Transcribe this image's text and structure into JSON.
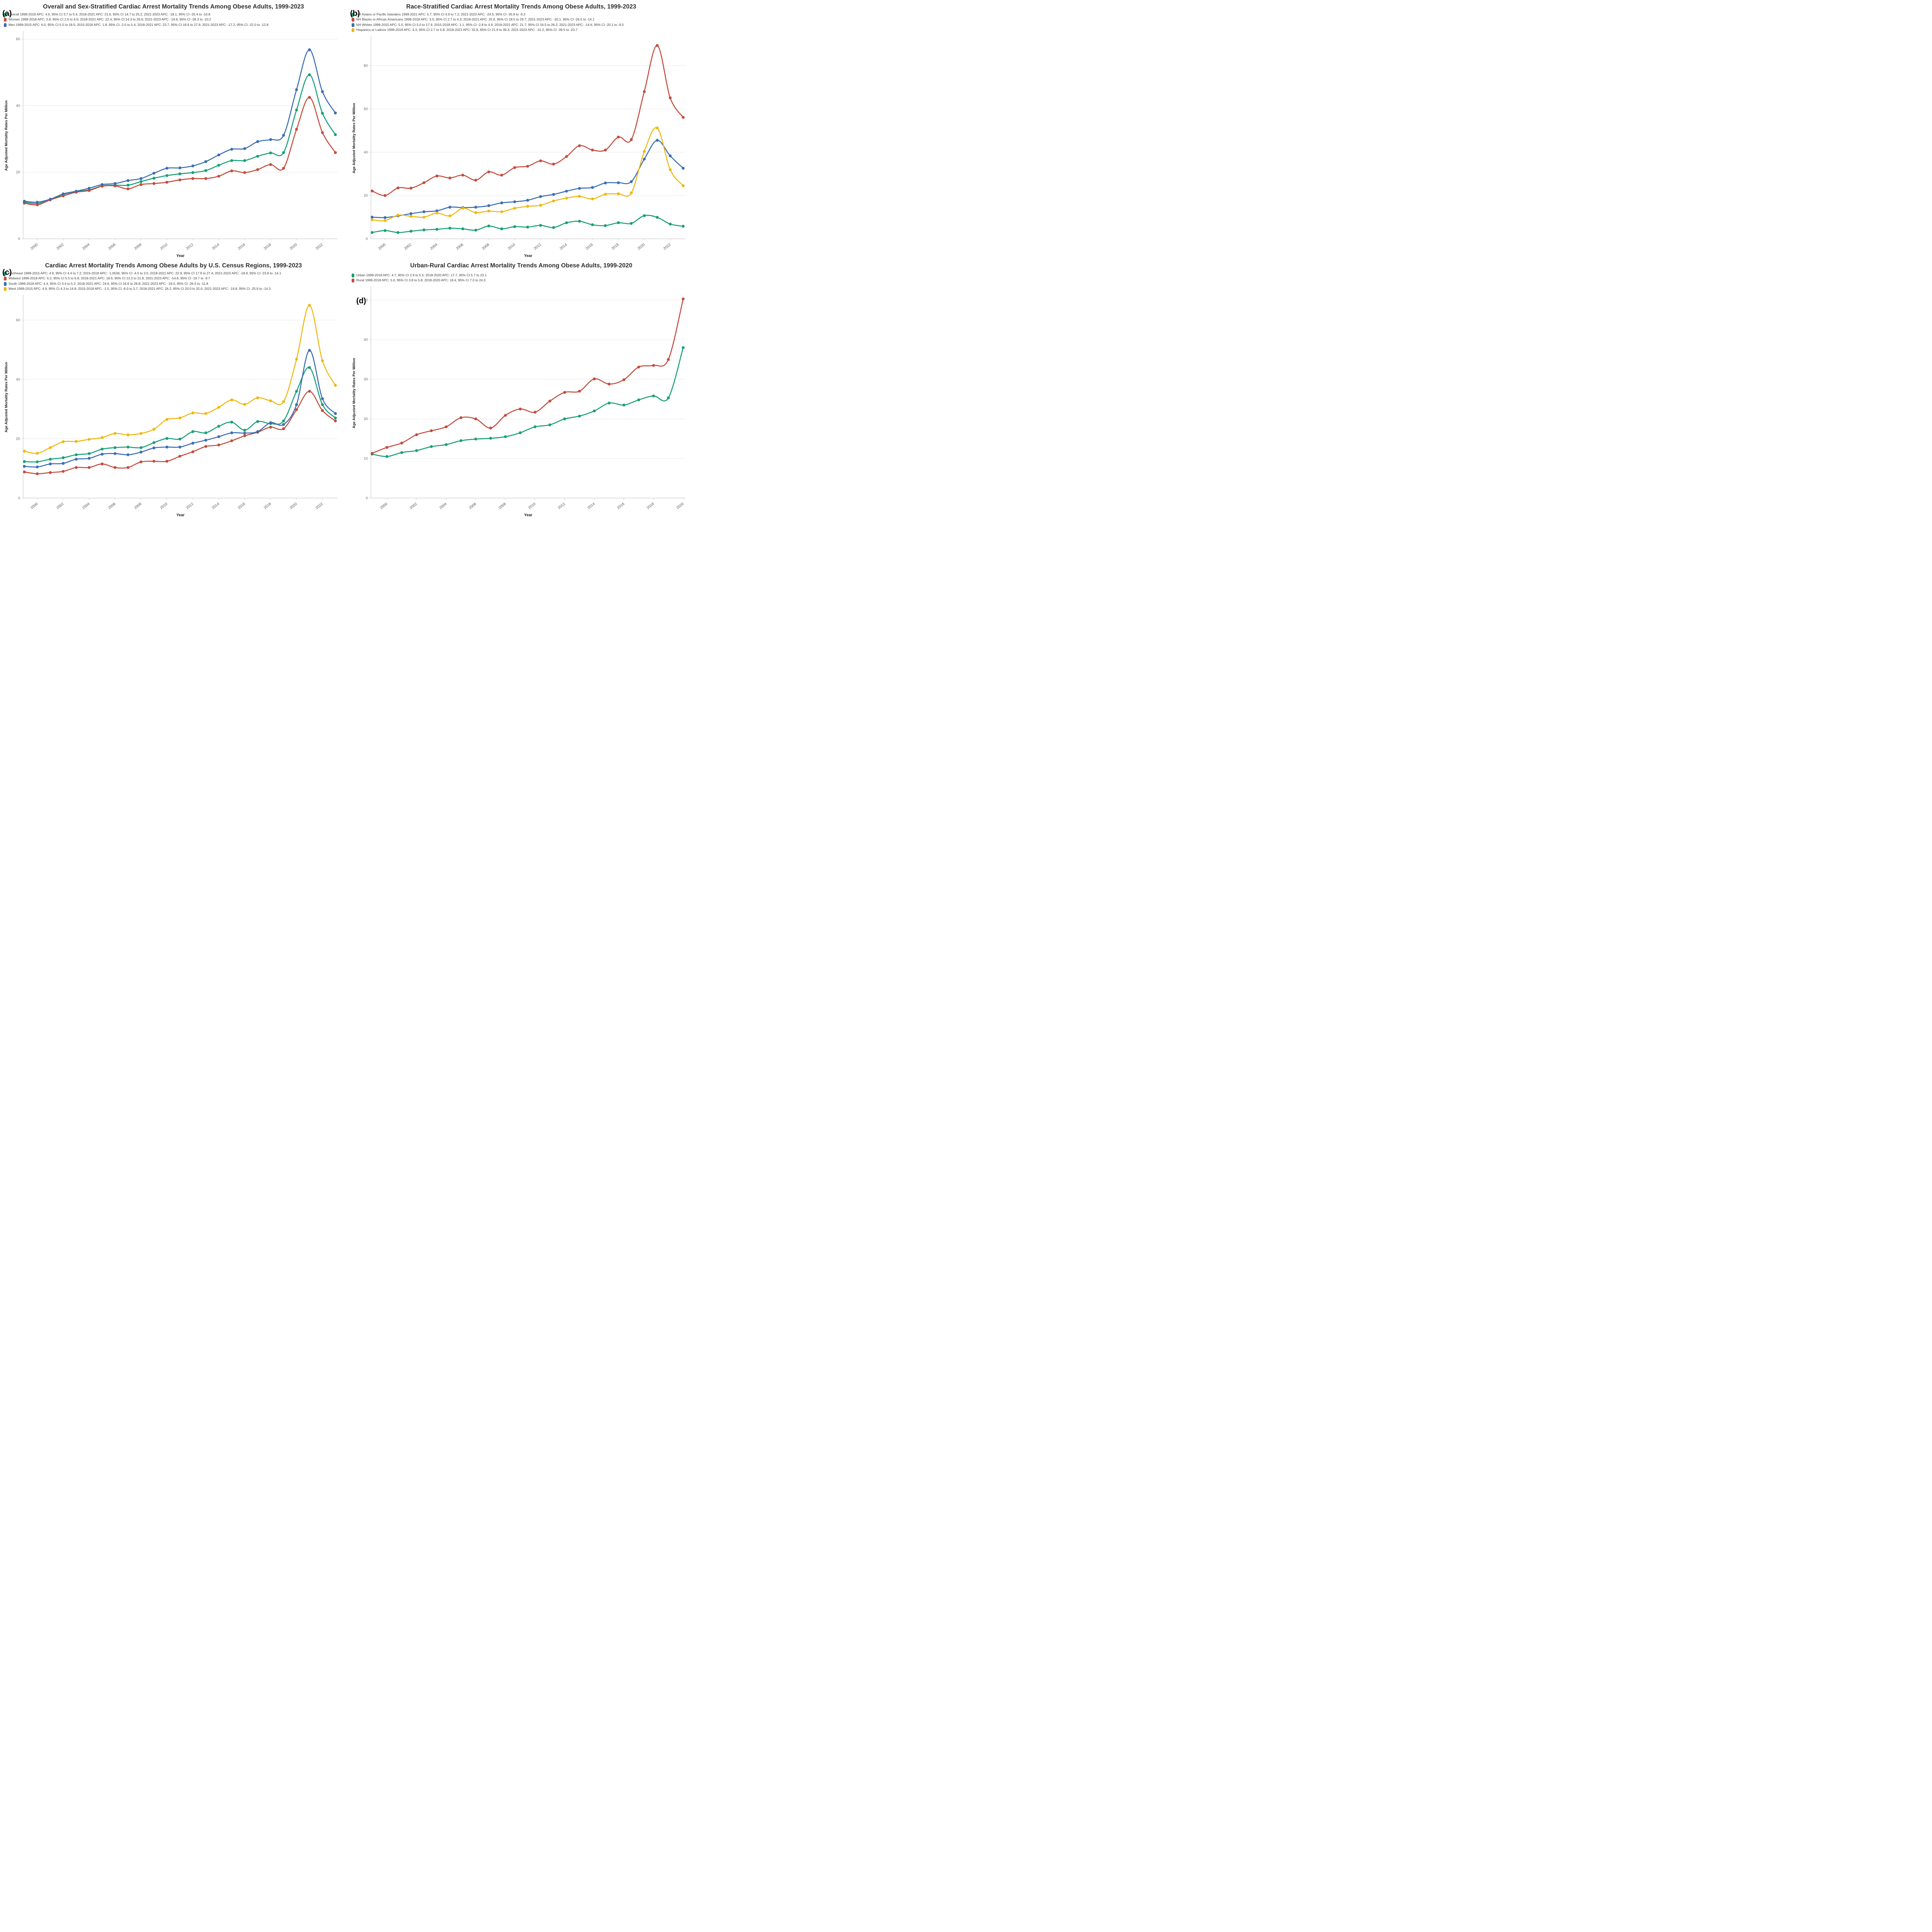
{
  "panels": [
    {
      "letter": "(a)",
      "title": "Overall and Sex-Stratified Cardiac Arrest Mortality Trends Among Obese Adults, 1999-2023"
    },
    {
      "letter": "(b)",
      "title": "Race-Stratified Cardiac Arrest Mortality Trends Among Obese Adults, 1999-2023"
    },
    {
      "letter": "(c)",
      "title": "Cardiac Arrest Mortality Trends Among Obese Adults by U.S. Census Regions, 1999-2023"
    },
    {
      "letter": "(d)",
      "title": "Urban-Rural Cardiac Arrest Mortality Trends Among Obese Adults, 1999-2020"
    }
  ],
  "chart_data": [
    {
      "type": "line",
      "title": "Overall and Sex-Stratified Cardiac Arrest Mortality Trends Among Obese Adults, 1999-2023",
      "xlabel": "Year",
      "ylabel": "Age Adjusted Mortality Rates Per Million",
      "x": [
        1999,
        2000,
        2001,
        2002,
        2003,
        2004,
        2005,
        2006,
        2007,
        2008,
        2009,
        2010,
        2011,
        2012,
        2013,
        2014,
        2015,
        2016,
        2017,
        2018,
        2019,
        2020,
        2021,
        2022,
        2023
      ],
      "xticks": [
        2000,
        2002,
        2004,
        2006,
        2008,
        2010,
        2012,
        2014,
        2016,
        2018,
        2020,
        2022
      ],
      "yticks": [
        0,
        20,
        40,
        60
      ],
      "ylim": [
        0,
        62
      ],
      "grid": "horizontal",
      "legend_position": "top-left",
      "series": [
        {
          "name": "Overall",
          "color": "#16a075",
          "label": "Overall 1999-2018 APC: 4.6, 95% CI 3.7 to 5.4; 2018-2021 APC: 21.6, 95% CI 14.7 to 25.2; 2021-2023 APC: -18.1, 95% CI -25.4 to -10.8",
          "values": [
            11.0,
            10.6,
            11.8,
            13.3,
            14.2,
            14.7,
            15.9,
            16.1,
            16.1,
            17.2,
            18.2,
            19.0,
            19.5,
            19.9,
            20.5,
            22.1,
            23.5,
            23.5,
            24.8,
            25.8,
            25.9,
            38.7,
            49.3,
            37.7,
            31.3
          ]
        },
        {
          "name": "Women",
          "color": "#c54b3c",
          "label": "Women 1999-2018 APC: 3.8, 95% CI 2.6 to 4.6; 2018-2021 APC: 22.4, 95% CI 14.3 to 26.6; 2021-2023 APC: -19.8, 95% CI -28.3 to -10.2",
          "values": [
            10.7,
            10.2,
            11.7,
            12.9,
            14.0,
            14.5,
            15.8,
            15.9,
            15.0,
            16.3,
            16.6,
            17.0,
            17.7,
            18.1,
            18.1,
            18.8,
            20.4,
            19.9,
            20.8,
            22.3,
            21.2,
            32.9,
            42.5,
            31.9,
            25.9
          ]
        },
        {
          "name": "Men",
          "color": "#3b6db5",
          "label": "Men 1999-2015 APC: 6.0, 95% CI 5.5 to 18.5; 2015-2018 APC: 1.8, 95% CI -2.0 to 5.4; 2018-2021 APC: 23.7, 95% CI 18.9 to 27.9; 2021-2023 APC: -17.2, 95% CI -22.0 to -12.8",
          "values": [
            11.3,
            11.0,
            11.9,
            13.5,
            14.3,
            15.2,
            16.3,
            16.6,
            17.5,
            18.1,
            19.7,
            21.2,
            21.3,
            21.9,
            23.2,
            25.2,
            26.9,
            27.1,
            29.2,
            29.8,
            31.1,
            44.8,
            56.8,
            44.2,
            37.8
          ]
        }
      ]
    },
    {
      "type": "line",
      "title": "Race-Stratified Cardiac Arrest Mortality Trends Among Obese Adults, 1999-2023",
      "xlabel": "Year",
      "ylabel": "Age Adjusted Mortality Rates Per Million",
      "x": [
        1999,
        2000,
        2001,
        2002,
        2003,
        2004,
        2005,
        2006,
        2007,
        2008,
        2009,
        2010,
        2011,
        2012,
        2013,
        2014,
        2015,
        2016,
        2017,
        2018,
        2019,
        2020,
        2021,
        2022,
        2023
      ],
      "xticks": [
        2000,
        2002,
        2004,
        2006,
        2008,
        2010,
        2012,
        2014,
        2016,
        2018,
        2020,
        2022
      ],
      "yticks": [
        0,
        20,
        40,
        60,
        80
      ],
      "ylim": [
        0,
        93
      ],
      "grid": "horizontal",
      "legend_position": "top-left",
      "series": [
        {
          "name": "NH Asians or Pacific Islanders",
          "color": "#16a075",
          "label": "NH Asians or Pacific Islanders 1999-2021 APC: 5.7, 95% CI 4.9 to 7.2; 2021-2023 APC: -24.5, 95% CI -35.8 to -9.3",
          "values": [
            2.9,
            3.8,
            2.9,
            3.5,
            4.1,
            4.4,
            4.9,
            4.6,
            4.0,
            5.9,
            4.6,
            5.6,
            5.4,
            6.2,
            5.2,
            7.4,
            8.1,
            6.5,
            6.1,
            7.4,
            7.1,
            10.7,
            9.9,
            6.8,
            5.8
          ]
        },
        {
          "name": "NH Blacks or African Americans",
          "color": "#c54b3c",
          "label": "NH Blacks or African Americans 1999-2018 APC: 3.5, 95% CI 2.7 to 4.3; 2018-2021 APC: 25.6, 95% CI 18.5 to 29.7; 2021-2023 APC: -20.1, 95% CI -26.5 to -14.1",
          "values": [
            22.1,
            20.0,
            23.5,
            23.4,
            25.9,
            29.0,
            28.1,
            29.4,
            27.1,
            30.9,
            29.4,
            32.9,
            33.5,
            36.0,
            34.5,
            38.0,
            43.0,
            41.0,
            41.0,
            47.0,
            45.8,
            68.0,
            89.3,
            65.1,
            56.1
          ]
        },
        {
          "name": "NH Whites",
          "color": "#3b6db5",
          "label": "NH Whites 1999-2015 APC: 5.5, 95% CI 5.0 to 17.4; 2015-2018 APC: 1.1, 95% CI -2.8 to 4.9; 2018-2021 APC: 21.7, 95% CI 16.5 to 26.2; 2021-2023 APC: -14.6, 95% CI -20.1 to -9.5",
          "values": [
            10.0,
            9.8,
            10.6,
            11.6,
            12.5,
            12.9,
            14.6,
            14.4,
            14.6,
            15.3,
            16.6,
            17.1,
            17.8,
            19.5,
            20.5,
            22.0,
            23.3,
            23.7,
            25.8,
            25.9,
            26.4,
            36.8,
            45.5,
            38.3,
            32.6
          ]
        },
        {
          "name": "Hispanics or Latinos",
          "color": "#efb810",
          "label": "Hispanics or Latinos 1999-2018 APC: 4.3, 95% CI 2.7 to 5.8; 2018-2021 APC: 32.9, 95% CI 21.9 to 39.3; 2021-2023 APC: -31.2, 95% CI -39.5 to -23.7",
          "values": [
            8.8,
            8.4,
            10.9,
            10.4,
            10.0,
            11.9,
            10.6,
            14.1,
            12.1,
            12.8,
            12.5,
            14.1,
            15.0,
            15.5,
            17.5,
            18.8,
            19.6,
            18.4,
            20.6,
            20.8,
            21.2,
            40.4,
            51.2,
            31.9,
            24.5
          ]
        }
      ]
    },
    {
      "type": "line",
      "title": "Cardiac Arrest Mortality Trends Among Obese Adults by U.S. Census Regions, 1999-2023",
      "xlabel": "Year",
      "ylabel": "Age Adjusted Mortality Rates Per Million",
      "x": [
        1999,
        2000,
        2001,
        2002,
        2003,
        2004,
        2005,
        2006,
        2007,
        2008,
        2009,
        2010,
        2011,
        2012,
        2013,
        2014,
        2015,
        2016,
        2017,
        2018,
        2019,
        2020,
        2021,
        2022,
        2023
      ],
      "xticks": [
        2000,
        2002,
        2004,
        2006,
        2008,
        2010,
        2012,
        2014,
        2016,
        2018,
        2020,
        2022
      ],
      "yticks": [
        0,
        20,
        40,
        60
      ],
      "ylim": [
        0,
        68
      ],
      "grid": "horizontal",
      "legend_position": "top-left",
      "series": [
        {
          "name": "Northeast",
          "color": "#16a075",
          "label": "Northeast 1999-2015 APC: 4.9, 95% CI 4.4 to 7.2; 2015-2018 APC: -1.0536, 95% CI -4.5 to 3.5; 2018-2021 APC: 22.9, 95% CI 17.9 to 27.4; 2021-2023 APC: -18.8, 95% CI -23.8 to -14.1",
          "values": [
            12.3,
            12.2,
            13.1,
            13.6,
            14.6,
            15.0,
            16.5,
            17.0,
            17.2,
            17.0,
            18.7,
            20.1,
            19.9,
            22.4,
            22.0,
            24.2,
            25.6,
            22.9,
            25.8,
            25.1,
            26.0,
            36.0,
            44.0,
            31.5,
            27.0
          ]
        },
        {
          "name": "Midwest",
          "color": "#c54b3c",
          "label": "Midwest 1999-2018 APC: 6.2, 95% CI 5.5 to 6.8; 2018-2021 APC: 18.6, 95% CI 13.3 to 21.8; 2021-2023 APC: -14.8, 95% CI -19.7 to -9.7",
          "values": [
            8.8,
            8.2,
            8.6,
            9.0,
            10.3,
            10.3,
            11.5,
            10.3,
            10.3,
            12.2,
            12.4,
            12.4,
            14.1,
            15.6,
            17.4,
            17.9,
            19.3,
            21.0,
            22.2,
            23.9,
            23.4,
            29.8,
            36.0,
            29.5,
            26.0
          ]
        },
        {
          "name": "South",
          "color": "#3b6db5",
          "label": "South 1999-2018 APC: 4.4, 95% CI 3.4 to 5.2; 2018-2021 APC: 24.6, 95% CI 16.6 to 28.8; 2021-2023 APC: -19.0, 95% CI -26.5 to -11.8",
          "values": [
            10.7,
            10.5,
            11.5,
            11.7,
            13.1,
            13.4,
            14.8,
            15.0,
            14.6,
            15.5,
            16.9,
            17.2,
            17.2,
            18.5,
            19.5,
            20.7,
            22.0,
            21.9,
            22.4,
            25.4,
            24.8,
            31.5,
            49.8,
            33.5,
            28.5
          ]
        },
        {
          "name": "West",
          "color": "#efb810",
          "label": "West 1999-2015 APC: 4.9, 95% CI 4.3 to 14.8; 2015-2018 APC: -1.5, 95% CI -6.0 to 3.7; 2018-2021 APC: 26.2, 95% CI 20.0 to 32.0; 2021-2023 APC: -19.8, 95% CI -25.9 to -14.3",
          "values": [
            15.8,
            15.1,
            17.0,
            19.0,
            19.1,
            19.8,
            20.4,
            21.8,
            21.3,
            21.8,
            23.2,
            26.5,
            27.0,
            28.7,
            28.5,
            30.6,
            33.1,
            31.6,
            33.8,
            32.8,
            32.5,
            46.8,
            65.0,
            46.3,
            38.0
          ]
        }
      ]
    },
    {
      "type": "line",
      "title": "Urban-Rural Cardiac Arrest Mortality Trends Among Obese Adults, 1999-2020",
      "xlabel": "Year",
      "ylabel": "Age Adjusted Mortality Rates Per Million",
      "x": [
        1999,
        2000,
        2001,
        2002,
        2003,
        2004,
        2005,
        2006,
        2007,
        2008,
        2009,
        2010,
        2011,
        2012,
        2013,
        2014,
        2015,
        2016,
        2017,
        2018,
        2019,
        2020
      ],
      "xticks": [
        2000,
        2002,
        2004,
        2006,
        2008,
        2010,
        2012,
        2014,
        2016,
        2018,
        2020
      ],
      "yticks": [
        0,
        10,
        20,
        30,
        40,
        50
      ],
      "ylim": [
        0,
        53
      ],
      "grid": "horizontal",
      "legend_position": "top-left",
      "series": [
        {
          "name": "Urban",
          "color": "#16a075",
          "label": "Urban 1999-2018 APC: 4.7, 95% CI 2.9 to 5.5; 2018-2020 APC: 17.7, 95% CI 5.7 to 23.1",
          "values": [
            11.1,
            10.5,
            11.5,
            12.0,
            13.0,
            13.5,
            14.5,
            14.9,
            15.1,
            15.5,
            16.5,
            18.0,
            18.5,
            20.0,
            20.7,
            22.0,
            24.0,
            23.5,
            24.8,
            25.8,
            25.3,
            38.0
          ]
        },
        {
          "name": "Rural",
          "color": "#c54b3c",
          "label": "Rural 1999-2018 APC: 5.0, 95% CI 3.8 to 5.8; 2018-2020 APC: 18.4, 95% CI 7.0 to 24.3",
          "values": [
            11.3,
            12.8,
            13.9,
            16.0,
            17.0,
            18.0,
            20.3,
            20.0,
            17.7,
            20.9,
            22.5,
            21.7,
            24.5,
            26.7,
            27.0,
            30.1,
            28.8,
            29.9,
            33.1,
            33.5,
            35.0,
            50.3
          ]
        }
      ]
    }
  ]
}
